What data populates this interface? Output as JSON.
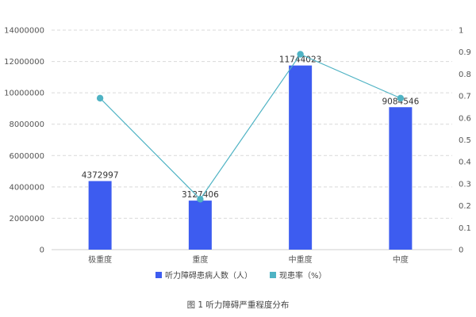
{
  "chart_data": {
    "type": "bar",
    "title": "",
    "caption": "图 1 听力障碍严重程度分布",
    "categories": [
      "极重度",
      "重度",
      "中重度",
      "中度"
    ],
    "series": [
      {
        "name": "听力障碍患病人数（人）",
        "type": "bar",
        "axis": "left",
        "values": [
          4372997,
          3127406,
          11744023,
          9084546
        ],
        "data_labels": [
          "4372997",
          "3127406",
          "11744023",
          "9084546"
        ],
        "color": "#3d5cf0"
      },
      {
        "name": "现患率（%）",
        "type": "line",
        "axis": "right",
        "values": [
          0.69,
          0.23,
          0.89,
          0.69
        ],
        "color": "#4fb3c4"
      }
    ],
    "y_left": {
      "lim": [
        0,
        14000000
      ],
      "ticks": [
        "0",
        "2000000",
        "4000000",
        "6000000",
        "8000000",
        "10000000",
        "12000000",
        "14000000"
      ]
    },
    "y_right": {
      "lim": [
        0,
        1
      ],
      "ticks": [
        "0",
        "0.1",
        "0.2",
        "0.3",
        "0.4",
        "0.5",
        "0.6",
        "0.7",
        "0.8",
        "0.9",
        "1"
      ]
    },
    "grid": true,
    "legend_position": "bottom"
  }
}
